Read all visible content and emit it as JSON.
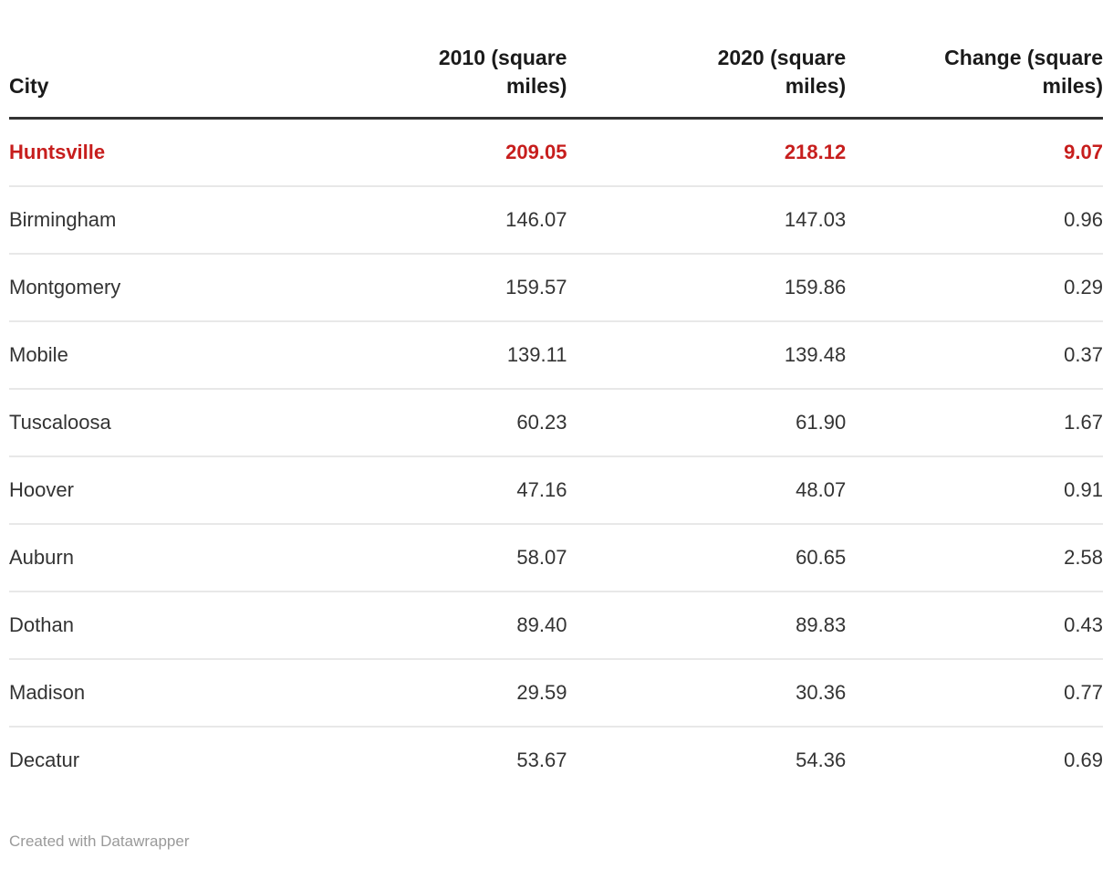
{
  "table": {
    "columns": [
      {
        "id": "city",
        "label": "City",
        "align": "left"
      },
      {
        "id": "y2010",
        "label": "2010 (square\nmiles)",
        "align": "right"
      },
      {
        "id": "y2020",
        "label": "2020 (square\nmiles)",
        "align": "right"
      },
      {
        "id": "change",
        "label": "Change (square\nmiles)",
        "align": "right"
      }
    ],
    "rows": [
      {
        "city": "Huntsville",
        "y2010": "209.05",
        "y2020": "218.12",
        "change": "9.07",
        "highlighted": true
      },
      {
        "city": "Birmingham",
        "y2010": "146.07",
        "y2020": "147.03",
        "change": "0.96",
        "highlighted": false
      },
      {
        "city": "Montgomery",
        "y2010": "159.57",
        "y2020": "159.86",
        "change": "0.29",
        "highlighted": false
      },
      {
        "city": "Mobile",
        "y2010": "139.11",
        "y2020": "139.48",
        "change": "0.37",
        "highlighted": false
      },
      {
        "city": "Tuscaloosa",
        "y2010": "60.23",
        "y2020": "61.90",
        "change": "1.67",
        "highlighted": false
      },
      {
        "city": "Hoover",
        "y2010": "47.16",
        "y2020": "48.07",
        "change": "0.91",
        "highlighted": false
      },
      {
        "city": "Auburn",
        "y2010": "58.07",
        "y2020": "60.65",
        "change": "2.58",
        "highlighted": false
      },
      {
        "city": "Dothan",
        "y2010": "89.40",
        "y2020": "89.83",
        "change": "0.43",
        "highlighted": false
      },
      {
        "city": "Madison",
        "y2010": "29.59",
        "y2020": "30.36",
        "change": "0.77",
        "highlighted": false
      },
      {
        "city": "Decatur",
        "y2010": "53.67",
        "y2020": "54.36",
        "change": "0.69",
        "highlighted": false
      }
    ]
  },
  "footer": {
    "attribution": "Created with Datawrapper"
  },
  "colors": {
    "highlight_text": "#c71e1d",
    "header_text": "#1a1a1a",
    "body_text": "#333333",
    "header_border": "#333333",
    "row_border": "#e8e8e8",
    "attribution_text": "#9a9a9a",
    "background": "#ffffff"
  },
  "chart_data": {
    "type": "table",
    "title": "",
    "columns": [
      "City",
      "2010 (square miles)",
      "2020 (square miles)",
      "Change (square miles)"
    ],
    "rows": [
      [
        "Huntsville",
        209.05,
        218.12,
        9.07
      ],
      [
        "Birmingham",
        146.07,
        147.03,
        0.96
      ],
      [
        "Montgomery",
        159.57,
        159.86,
        0.29
      ],
      [
        "Mobile",
        139.11,
        139.48,
        0.37
      ],
      [
        "Tuscaloosa",
        60.23,
        61.9,
        1.67
      ],
      [
        "Hoover",
        47.16,
        48.07,
        0.91
      ],
      [
        "Auburn",
        58.07,
        60.65,
        2.58
      ],
      [
        "Dothan",
        89.4,
        89.83,
        0.43
      ],
      [
        "Madison",
        29.59,
        30.36,
        0.77
      ],
      [
        "Decatur",
        53.67,
        54.36,
        0.69
      ]
    ],
    "highlighted_row": "Huntsville",
    "highlight_color": "#c71e1d",
    "attribution": "Created with Datawrapper"
  }
}
